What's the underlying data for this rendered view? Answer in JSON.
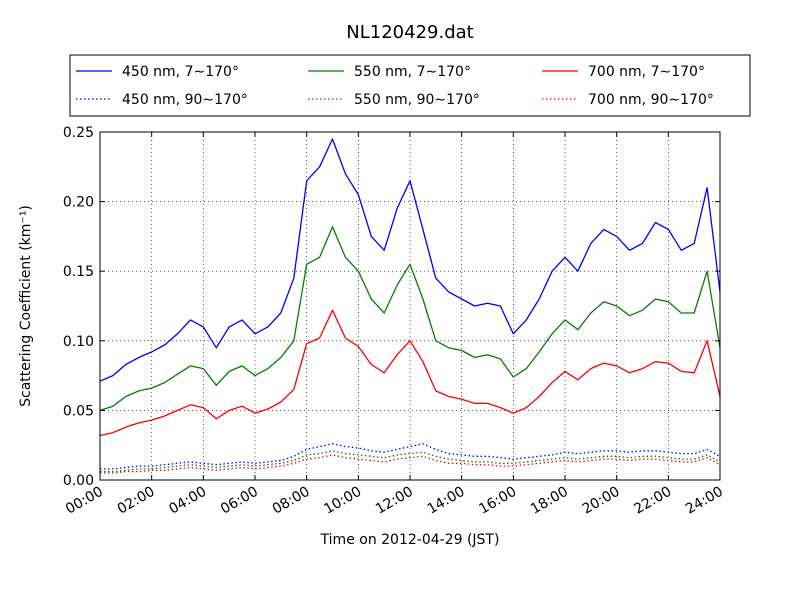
{
  "chart_data": {
    "type": "line",
    "title": "NL120429.dat",
    "xlabel": "Time on 2012-04-29 (JST)",
    "ylabel": "Scattering Coefficient (km⁻¹)",
    "xlim": [
      0,
      24
    ],
    "ylim": [
      0,
      0.25
    ],
    "grid": true,
    "legend_position": "top",
    "x_ticks": [
      "00:00",
      "02:00",
      "04:00",
      "06:00",
      "08:00",
      "10:00",
      "12:00",
      "14:00",
      "16:00",
      "18:00",
      "20:00",
      "22:00",
      "24:00"
    ],
    "y_ticks": [
      "0.00",
      "0.05",
      "0.10",
      "0.15",
      "0.20",
      "0.25"
    ],
    "x": [
      0,
      0.5,
      1,
      1.5,
      2,
      2.5,
      3,
      3.5,
      4,
      4.5,
      5,
      5.5,
      6,
      6.5,
      7,
      7.5,
      8,
      8.5,
      9,
      9.5,
      10,
      10.5,
      11,
      11.5,
      12,
      12.5,
      13,
      13.5,
      14,
      14.5,
      15,
      15.5,
      16,
      16.5,
      17,
      17.5,
      18,
      18.5,
      19,
      19.5,
      20,
      20.5,
      21,
      21.5,
      22,
      22.5,
      23,
      23.5,
      24
    ],
    "series": [
      {
        "name": "450 nm, 7∼170°",
        "color": "#0000ff",
        "style": "solid",
        "values": [
          0.071,
          0.075,
          0.083,
          0.088,
          0.092,
          0.097,
          0.105,
          0.115,
          0.11,
          0.095,
          0.11,
          0.115,
          0.105,
          0.11,
          0.12,
          0.145,
          0.215,
          0.225,
          0.245,
          0.22,
          0.205,
          0.175,
          0.165,
          0.195,
          0.215,
          0.18,
          0.145,
          0.135,
          0.13,
          0.125,
          0.127,
          0.125,
          0.105,
          0.115,
          0.13,
          0.15,
          0.16,
          0.15,
          0.17,
          0.18,
          0.175,
          0.165,
          0.17,
          0.185,
          0.18,
          0.165,
          0.17,
          0.21,
          0.135
        ]
      },
      {
        "name": "550 nm, 7∼170°",
        "color": "#008000",
        "style": "solid",
        "values": [
          0.05,
          0.053,
          0.06,
          0.064,
          0.066,
          0.07,
          0.076,
          0.082,
          0.08,
          0.068,
          0.078,
          0.082,
          0.075,
          0.08,
          0.088,
          0.1,
          0.155,
          0.16,
          0.182,
          0.16,
          0.15,
          0.13,
          0.12,
          0.14,
          0.155,
          0.13,
          0.1,
          0.095,
          0.093,
          0.088,
          0.09,
          0.087,
          0.074,
          0.08,
          0.092,
          0.105,
          0.115,
          0.108,
          0.12,
          0.128,
          0.125,
          0.118,
          0.122,
          0.13,
          0.128,
          0.12,
          0.12,
          0.15,
          0.095
        ]
      },
      {
        "name": "700 nm, 7∼170°",
        "color": "#ff0000",
        "style": "solid",
        "values": [
          0.032,
          0.034,
          0.038,
          0.041,
          0.043,
          0.046,
          0.05,
          0.054,
          0.052,
          0.044,
          0.05,
          0.053,
          0.048,
          0.051,
          0.056,
          0.065,
          0.098,
          0.102,
          0.122,
          0.102,
          0.096,
          0.083,
          0.077,
          0.09,
          0.1,
          0.085,
          0.064,
          0.06,
          0.058,
          0.055,
          0.055,
          0.052,
          0.048,
          0.052,
          0.06,
          0.07,
          0.078,
          0.072,
          0.08,
          0.084,
          0.082,
          0.077,
          0.08,
          0.085,
          0.084,
          0.078,
          0.077,
          0.1,
          0.06
        ]
      },
      {
        "name": "450 nm, 90∼170°",
        "color": "#0000ff",
        "style": "dotted",
        "values": [
          0.008,
          0.008,
          0.009,
          0.01,
          0.01,
          0.011,
          0.012,
          0.013,
          0.012,
          0.011,
          0.012,
          0.013,
          0.012,
          0.013,
          0.014,
          0.017,
          0.022,
          0.024,
          0.026,
          0.024,
          0.023,
          0.021,
          0.02,
          0.022,
          0.024,
          0.026,
          0.022,
          0.019,
          0.018,
          0.017,
          0.017,
          0.016,
          0.015,
          0.016,
          0.017,
          0.018,
          0.02,
          0.019,
          0.02,
          0.021,
          0.021,
          0.02,
          0.021,
          0.021,
          0.02,
          0.019,
          0.019,
          0.022,
          0.017
        ]
      },
      {
        "name": "550 nm, 90∼170°",
        "color": "#008000",
        "style": "dotted",
        "values": [
          0.006,
          0.006,
          0.007,
          0.008,
          0.008,
          0.009,
          0.01,
          0.011,
          0.01,
          0.009,
          0.01,
          0.011,
          0.01,
          0.011,
          0.012,
          0.014,
          0.018,
          0.019,
          0.021,
          0.019,
          0.018,
          0.017,
          0.016,
          0.018,
          0.019,
          0.02,
          0.017,
          0.015,
          0.014,
          0.013,
          0.013,
          0.012,
          0.012,
          0.013,
          0.014,
          0.015,
          0.016,
          0.015,
          0.016,
          0.017,
          0.017,
          0.016,
          0.017,
          0.017,
          0.016,
          0.015,
          0.015,
          0.018,
          0.013
        ]
      },
      {
        "name": "700 nm, 90∼170°",
        "color": "#ff0000",
        "style": "dotted",
        "values": [
          0.005,
          0.005,
          0.006,
          0.006,
          0.007,
          0.007,
          0.008,
          0.009,
          0.008,
          0.007,
          0.008,
          0.009,
          0.008,
          0.009,
          0.01,
          0.012,
          0.015,
          0.016,
          0.018,
          0.016,
          0.015,
          0.014,
          0.013,
          0.015,
          0.016,
          0.017,
          0.014,
          0.012,
          0.012,
          0.011,
          0.011,
          0.01,
          0.01,
          0.011,
          0.012,
          0.013,
          0.014,
          0.013,
          0.014,
          0.015,
          0.015,
          0.014,
          0.015,
          0.015,
          0.014,
          0.013,
          0.013,
          0.016,
          0.011
        ]
      }
    ]
  }
}
